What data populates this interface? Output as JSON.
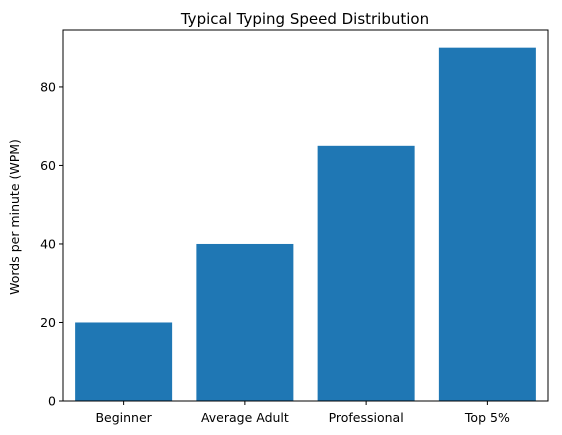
{
  "chart_data": {
    "type": "bar",
    "title": "Typical Typing Speed Distribution",
    "xlabel": "",
    "ylabel": "Words per minute (WPM)",
    "categories": [
      "Beginner",
      "Average Adult",
      "Professional",
      "Top 5%"
    ],
    "values": [
      20,
      40,
      65,
      90
    ],
    "ylim": [
      0,
      94.5
    ],
    "yticks": [
      0,
      20,
      40,
      60,
      80
    ],
    "grid": false,
    "bar_color": "#1f77b4"
  }
}
